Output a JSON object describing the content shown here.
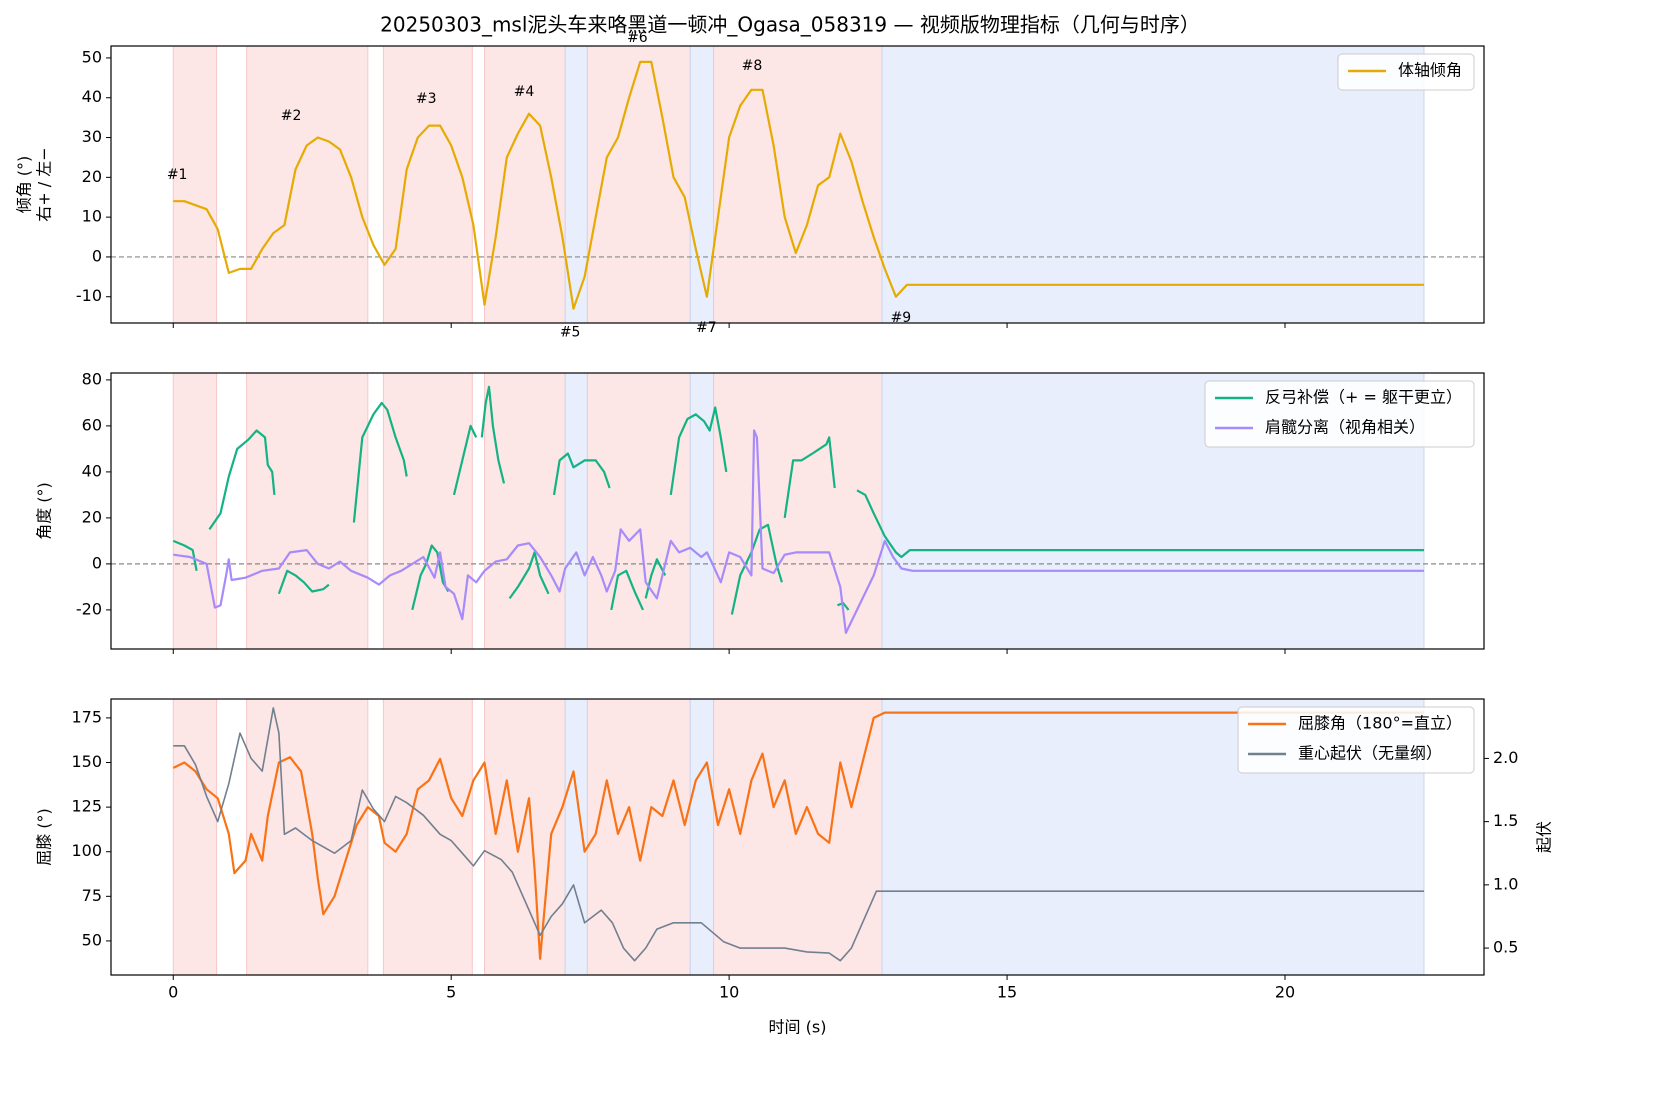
{
  "title": "20250303_msl泥头车来咯黑道一顿冲_Ogasa_058319 — 视频版物理指标（几何与时序）",
  "chart_data": [
    {
      "type": "line",
      "ylabel": [
        "倾角 (°)",
        "右+ / 左−"
      ],
      "xlim": [
        -1.12,
        23.58
      ],
      "xticks": [
        0,
        5,
        10,
        15,
        20
      ],
      "ylim": [
        -16.6,
        53
      ],
      "yticks": [
        -10,
        0,
        10,
        20,
        30,
        40,
        50
      ],
      "hline": 0,
      "legend": "upper right",
      "spans": [
        {
          "start": 0,
          "end": 0.78,
          "color": "#fde6e6"
        },
        {
          "start": 1.32,
          "end": 3.5,
          "color": "#fde6e6"
        },
        {
          "start": 3.78,
          "end": 5.38,
          "color": "#fde6e6"
        },
        {
          "start": 5.6,
          "end": 7.05,
          "color": "#fde6e6"
        },
        {
          "start": 7.05,
          "end": 7.45,
          "color": "#e8eefb"
        },
        {
          "start": 7.45,
          "end": 9.3,
          "color": "#fde6e6"
        },
        {
          "start": 9.3,
          "end": 9.72,
          "color": "#e8eefb"
        },
        {
          "start": 9.72,
          "end": 12.75,
          "color": "#fde6e6"
        },
        {
          "start": 12.75,
          "end": 22.5,
          "color": "#e8eefb"
        }
      ],
      "annotations": [
        {
          "text": "#1",
          "x": 0.07,
          "y": 20.6
        },
        {
          "text": "#2",
          "x": 2.12,
          "y": 35.4
        },
        {
          "text": "#3",
          "x": 4.55,
          "y": 39.7
        },
        {
          "text": "#4",
          "x": 6.31,
          "y": 41.5
        },
        {
          "text": "#5",
          "x": 7.14,
          "y": -19
        },
        {
          "text": "#6",
          "x": 8.35,
          "y": 55
        },
        {
          "text": "#7",
          "x": 9.59,
          "y": -17.8
        },
        {
          "text": "#8",
          "x": 10.41,
          "y": 48
        },
        {
          "text": "#9",
          "x": 13.09,
          "y": -15.3
        }
      ],
      "series": [
        {
          "name": "体轴倾角",
          "color": "#e6ab02",
          "x": [
            0,
            0.2,
            0.4,
            0.6,
            0.8,
            1.0,
            1.2,
            1.4,
            1.6,
            1.8,
            2.0,
            2.2,
            2.4,
            2.6,
            2.8,
            3.0,
            3.2,
            3.4,
            3.6,
            3.8,
            4.0,
            4.2,
            4.4,
            4.6,
            4.8,
            5.0,
            5.2,
            5.4,
            5.6,
            5.8,
            6.0,
            6.2,
            6.4,
            6.6,
            6.8,
            7.0,
            7.2,
            7.4,
            7.6,
            7.8,
            8.0,
            8.2,
            8.4,
            8.6,
            8.8,
            9.0,
            9.2,
            9.4,
            9.6,
            9.8,
            10.0,
            10.2,
            10.4,
            10.6,
            10.8,
            11.0,
            11.2,
            11.4,
            11.6,
            11.8,
            12.0,
            12.2,
            12.4,
            12.6,
            12.8,
            13.0,
            13.2,
            22.5
          ],
          "values": [
            14,
            14,
            13,
            12,
            7,
            -4,
            -3,
            -3,
            2,
            6,
            8,
            22,
            28,
            30,
            29,
            27,
            20,
            10,
            3,
            -2,
            2,
            22,
            30,
            33,
            33,
            28,
            20,
            8,
            -12,
            5,
            25,
            31,
            36,
            33,
            20,
            5,
            -13,
            -5,
            10,
            25,
            30,
            40,
            49,
            49,
            35,
            20,
            15,
            2,
            -10,
            10,
            30,
            38,
            42,
            42,
            28,
            10,
            1,
            8,
            18,
            20,
            31,
            24,
            14,
            5,
            -3,
            -10,
            -7,
            -7
          ]
        }
      ]
    },
    {
      "type": "line",
      "ylabel": [
        "角度 (°)"
      ],
      "xlim": [
        -1.12,
        23.58
      ],
      "xticks": [
        0,
        5,
        10,
        15,
        20
      ],
      "ylim": [
        -37,
        83
      ],
      "yticks": [
        -20,
        0,
        20,
        40,
        60,
        80
      ],
      "hline": 0,
      "legend": "upper right",
      "spans": [
        {
          "start": 0,
          "end": 0.78,
          "color": "#fde6e6"
        },
        {
          "start": 1.32,
          "end": 3.5,
          "color": "#fde6e6"
        },
        {
          "start": 3.78,
          "end": 5.38,
          "color": "#fde6e6"
        },
        {
          "start": 5.6,
          "end": 7.05,
          "color": "#fde6e6"
        },
        {
          "start": 7.05,
          "end": 7.45,
          "color": "#e8eefb"
        },
        {
          "start": 7.45,
          "end": 9.3,
          "color": "#fde6e6"
        },
        {
          "start": 9.3,
          "end": 9.72,
          "color": "#e8eefb"
        },
        {
          "start": 9.72,
          "end": 12.75,
          "color": "#fde6e6"
        },
        {
          "start": 12.75,
          "end": 22.5,
          "color": "#e8eefb"
        }
      ],
      "series": [
        {
          "name": "反弓补偿（+ = 躯干更立）",
          "color": "#13b383",
          "x": [
            0,
            0.2,
            0.35,
            0.42,
            null,
            0.65,
            0.85,
            1.0,
            1.15,
            1.35,
            1.5,
            1.65,
            1.7,
            1.78,
            1.82,
            null,
            1.9,
            2.05,
            2.2,
            2.35,
            2.5,
            2.7,
            2.8,
            null,
            3.25,
            3.4,
            3.6,
            3.75,
            3.85,
            4.0,
            4.15,
            4.2,
            null,
            4.3,
            4.45,
            4.55,
            4.65,
            4.75,
            4.85,
            4.95,
            null,
            5.05,
            5.2,
            5.35,
            5.45,
            null,
            5.55,
            5.62,
            5.68,
            5.75,
            5.85,
            5.95,
            null,
            6.05,
            6.2,
            6.4,
            6.5,
            6.6,
            6.75,
            null,
            6.85,
            6.95,
            7.1,
            7.2,
            7.4,
            7.6,
            7.75,
            7.85,
            null,
            7.88,
            8.0,
            8.15,
            8.3,
            8.45,
            null,
            8.5,
            8.6,
            8.7,
            8.85,
            null,
            8.95,
            9.1,
            9.25,
            9.4,
            9.55,
            9.65,
            9.75,
            9.85,
            9.95,
            null,
            10.05,
            10.2,
            10.4,
            10.55,
            10.7,
            10.85,
            10.95,
            null,
            11.0,
            11.15,
            11.3,
            11.5,
            11.75,
            11.8,
            11.9,
            null,
            11.95,
            12.05,
            12.15,
            null,
            12.3,
            12.45,
            12.6,
            12.8,
            13.0,
            13.1,
            13.25,
            22.5
          ],
          "values": [
            10,
            8,
            6,
            -3,
            null,
            15,
            22,
            38,
            50,
            54,
            58,
            55,
            43,
            40,
            30,
            null,
            -13,
            -3,
            -5,
            -8,
            -12,
            -11,
            -9,
            null,
            18,
            55,
            65,
            70,
            67,
            55,
            45,
            38,
            null,
            -20,
            -5,
            0,
            8,
            5,
            -8,
            -12,
            null,
            30,
            45,
            60,
            55,
            null,
            55,
            70,
            77,
            60,
            45,
            35,
            null,
            -15,
            -10,
            -2,
            5,
            -5,
            -13,
            null,
            30,
            45,
            48,
            42,
            45,
            45,
            40,
            33,
            null,
            -20,
            -5,
            -3,
            -12,
            -20,
            null,
            -15,
            -5,
            2,
            -5,
            null,
            30,
            55,
            63,
            65,
            62,
            58,
            68,
            55,
            40,
            null,
            -22,
            -5,
            5,
            15,
            17,
            0,
            -8,
            null,
            20,
            45,
            45,
            48,
            52,
            55,
            33,
            null,
            -18,
            -17,
            -20,
            null,
            32,
            30,
            22,
            12,
            5,
            3,
            6,
            6
          ]
        },
        {
          "name": "肩髋分离（视角相关）",
          "color": "#a78bfa",
          "x": [
            0,
            0.3,
            0.6,
            0.75,
            0.85,
            0.95,
            1.0,
            1.05,
            1.3,
            1.6,
            1.9,
            2.1,
            2.4,
            2.6,
            2.8,
            3.0,
            3.2,
            3.5,
            3.7,
            3.9,
            4.1,
            4.3,
            4.5,
            4.7,
            4.8,
            4.9,
            5.05,
            5.2,
            5.3,
            5.45,
            5.6,
            5.8,
            6.0,
            6.2,
            6.4,
            6.6,
            6.8,
            6.95,
            7.05,
            7.25,
            7.4,
            7.55,
            7.7,
            7.8,
            7.95,
            8.05,
            8.2,
            8.4,
            8.5,
            8.7,
            8.8,
            8.95,
            9.1,
            9.3,
            9.5,
            9.6,
            9.7,
            9.85,
            10.0,
            10.2,
            10.4,
            10.45,
            10.5,
            10.6,
            10.8,
            11.0,
            11.2,
            11.5,
            11.8,
            12.0,
            12.1,
            12.3,
            12.6,
            12.8,
            12.95,
            13.1,
            13.3,
            22.5
          ],
          "values": [
            4,
            3,
            0,
            -19,
            -18,
            -5,
            2,
            -7,
            -6,
            -3,
            -2,
            5,
            6,
            0,
            -2,
            1,
            -3,
            -6,
            -9,
            -5,
            -3,
            0,
            3,
            -6,
            5,
            -10,
            -13,
            -24,
            -5,
            -8,
            -3,
            1,
            2,
            8,
            9,
            3,
            -5,
            -12,
            -2,
            5,
            -5,
            3,
            -5,
            -12,
            -3,
            15,
            10,
            15,
            -8,
            -15,
            -5,
            10,
            5,
            7,
            3,
            5,
            0,
            -8,
            5,
            3,
            -5,
            58,
            55,
            -2,
            -4,
            4,
            5,
            5,
            5,
            -10,
            -30,
            -20,
            -5,
            10,
            3,
            -2,
            -3,
            -3
          ]
        }
      ]
    },
    {
      "type": "line",
      "ylabel": [
        "屈膝 (°)"
      ],
      "y2label": "起伏",
      "xlabel": "时间 (s)",
      "xlim": [
        -1.12,
        23.58
      ],
      "xticks": [
        0,
        5,
        10,
        15,
        20
      ],
      "ylim": [
        30.9,
        185.6
      ],
      "yticks": [
        50,
        75,
        100,
        125,
        150,
        175
      ],
      "y2lim": [
        0.287,
        2.47
      ],
      "y2ticks": [
        0.5,
        {
          "value": 1.0,
          "label": "1.0"
        },
        1.5,
        {
          "value": 2.0,
          "label": "2.0"
        }
      ],
      "legend": "upper right",
      "spans": [
        {
          "start": 0,
          "end": 0.78,
          "color": "#fde6e6"
        },
        {
          "start": 1.32,
          "end": 3.5,
          "color": "#fde6e6"
        },
        {
          "start": 3.78,
          "end": 5.38,
          "color": "#fde6e6"
        },
        {
          "start": 5.6,
          "end": 7.05,
          "color": "#fde6e6"
        },
        {
          "start": 7.05,
          "end": 7.45,
          "color": "#e8eefb"
        },
        {
          "start": 7.45,
          "end": 9.3,
          "color": "#fde6e6"
        },
        {
          "start": 9.3,
          "end": 9.72,
          "color": "#e8eefb"
        },
        {
          "start": 9.72,
          "end": 12.75,
          "color": "#fde6e6"
        },
        {
          "start": 12.75,
          "end": 22.5,
          "color": "#e8eefb"
        }
      ],
      "series": [
        {
          "name": "屈膝角（180°=直立）",
          "color": "#f97316",
          "x": [
            0,
            0.2,
            0.4,
            0.6,
            0.8,
            1.0,
            1.1,
            1.3,
            1.4,
            1.6,
            1.7,
            1.9,
            2.1,
            2.3,
            2.5,
            2.6,
            2.7,
            2.9,
            3.1,
            3.3,
            3.5,
            3.7,
            3.8,
            4.0,
            4.2,
            4.4,
            4.6,
            4.8,
            5.0,
            5.2,
            5.4,
            5.6,
            5.8,
            6.0,
            6.2,
            6.4,
            6.5,
            6.6,
            6.8,
            7.0,
            7.2,
            7.4,
            7.6,
            7.8,
            8.0,
            8.2,
            8.4,
            8.6,
            8.8,
            9.0,
            9.2,
            9.4,
            9.6,
            9.8,
            10.0,
            10.2,
            10.4,
            10.6,
            10.8,
            11.0,
            11.2,
            11.4,
            11.6,
            11.8,
            12.0,
            12.2,
            12.4,
            12.6,
            12.8,
            22.5
          ],
          "values": [
            147,
            150,
            145,
            135,
            130,
            110,
            88,
            95,
            110,
            95,
            120,
            150,
            153,
            145,
            110,
            85,
            65,
            75,
            95,
            115,
            125,
            120,
            105,
            100,
            110,
            135,
            140,
            152,
            130,
            120,
            140,
            150,
            110,
            140,
            100,
            130,
            90,
            40,
            110,
            125,
            145,
            100,
            110,
            140,
            110,
            125,
            95,
            125,
            120,
            140,
            115,
            140,
            150,
            115,
            135,
            110,
            140,
            155,
            125,
            140,
            110,
            125,
            110,
            105,
            150,
            125,
            150,
            175,
            178,
            178
          ]
        },
        {
          "name": "重心起伏（无量纲）",
          "color": "#708090",
          "axis": "y2",
          "x": [
            0,
            0.2,
            0.4,
            0.6,
            0.8,
            1.0,
            1.2,
            1.4,
            1.6,
            1.8,
            1.9,
            2.0,
            2.2,
            2.5,
            2.9,
            3.2,
            3.4,
            3.6,
            3.8,
            4.0,
            4.2,
            4.5,
            4.8,
            5.0,
            5.2,
            5.4,
            5.6,
            5.9,
            6.1,
            6.4,
            6.6,
            6.8,
            7.0,
            7.2,
            7.4,
            7.7,
            7.9,
            8.1,
            8.3,
            8.5,
            8.7,
            9.0,
            9.5,
            9.9,
            10.2,
            10.6,
            11.0,
            11.4,
            11.8,
            12.0,
            12.2,
            12.5,
            12.65,
            22.5
          ],
          "values": [
            2.1,
            2.1,
            1.95,
            1.7,
            1.5,
            1.8,
            2.2,
            2.0,
            1.9,
            2.4,
            2.2,
            1.4,
            1.45,
            1.35,
            1.25,
            1.35,
            1.75,
            1.6,
            1.5,
            1.7,
            1.65,
            1.55,
            1.4,
            1.35,
            1.25,
            1.15,
            1.27,
            1.2,
            1.1,
            0.8,
            0.6,
            0.75,
            0.85,
            1.0,
            0.7,
            0.8,
            0.7,
            0.5,
            0.4,
            0.5,
            0.65,
            0.7,
            0.7,
            0.55,
            0.5,
            0.5,
            0.5,
            0.47,
            0.46,
            0.4,
            0.5,
            0.8,
            0.95,
            0.95
          ]
        }
      ]
    }
  ]
}
